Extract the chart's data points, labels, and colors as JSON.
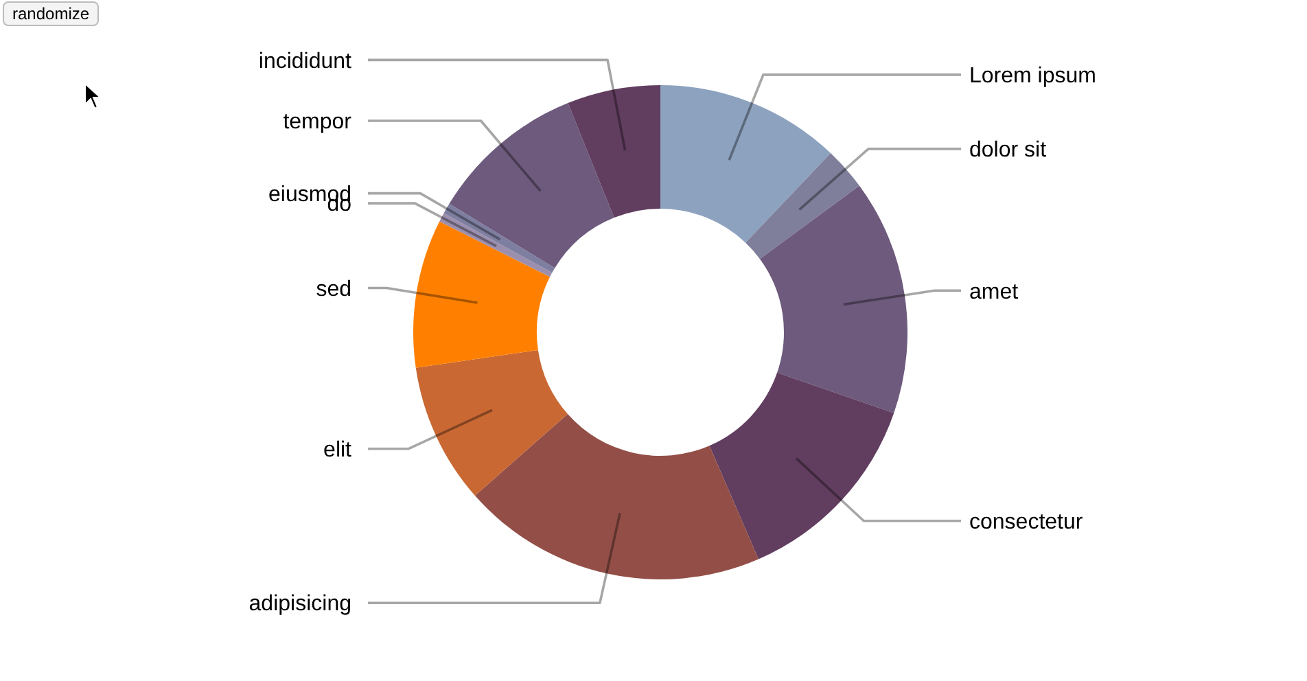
{
  "chart_data": {
    "type": "donut",
    "categories": [
      "Lorem ipsum",
      "dolor sit",
      "amet",
      "consectetur",
      "adipisicing",
      "elit",
      "sed",
      "do",
      "eiusmod",
      "tempor",
      "incididunt"
    ],
    "values": [
      12.1,
      2.8,
      15.4,
      13.2,
      20.0,
      9.2,
      9.7,
      0.6,
      0.7,
      10.2,
      6.1
    ],
    "colors": [
      "#8da2bf",
      "#7f7f9c",
      "#6e5a7d",
      "#613d5f",
      "#934f47",
      "#c96833",
      "#ff8000",
      "#9c8fae",
      "#7e7fa0",
      "#6e5a7d",
      "#613d5f"
    ],
    "annotations": [
      "randomize"
    ]
  }
}
